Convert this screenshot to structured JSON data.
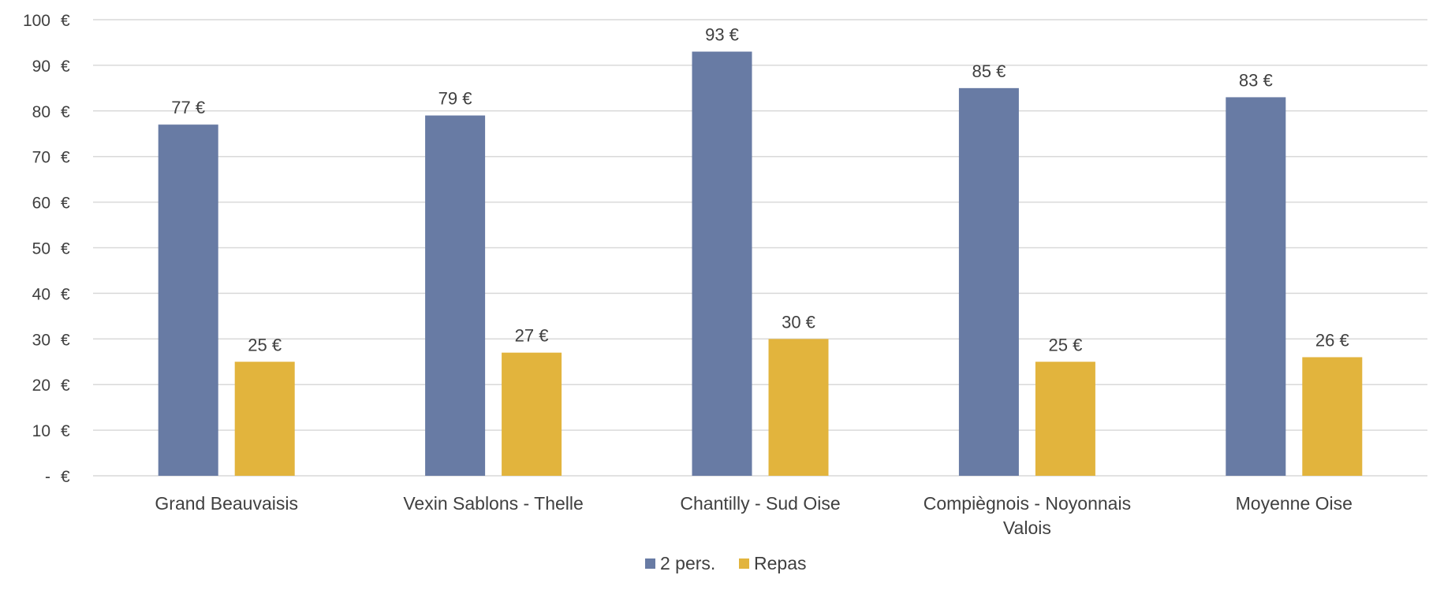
{
  "chart_data": {
    "type": "bar",
    "categories": [
      [
        "Grand Beauvaisis"
      ],
      [
        "Vexin Sablons - Thelle"
      ],
      [
        "Chantilly - Sud Oise"
      ],
      [
        "Compiègnois - Noyonnais",
        "Valois"
      ],
      [
        "Moyenne Oise"
      ]
    ],
    "series": [
      {
        "name": "2 pers.",
        "color": "#687ba4",
        "values": [
          77,
          79,
          93,
          85,
          83
        ]
      },
      {
        "name": "Repas",
        "color": "#e2b43d",
        "values": [
          25,
          27,
          30,
          25,
          26
        ]
      }
    ],
    "data_labels": [
      [
        "77 €",
        "79 €",
        "93 €",
        "85 €",
        "83 €"
      ],
      [
        "25 €",
        "27 €",
        "30 €",
        "25 €",
        "26 €"
      ]
    ],
    "ylim": [
      0,
      100
    ],
    "yticks": [
      0,
      10,
      20,
      30,
      40,
      50,
      60,
      70,
      80,
      90,
      100
    ],
    "ytick_labels": [
      "- €",
      "10 €",
      "20 €",
      "30 €",
      "40 €",
      "50 €",
      "60 €",
      "70 €",
      "80 €",
      "90 €",
      "100 €"
    ],
    "grid": true,
    "gridline_color": "#d9d9d9",
    "legend_position": "bottom",
    "title": "",
    "xlabel": "",
    "ylabel": ""
  }
}
